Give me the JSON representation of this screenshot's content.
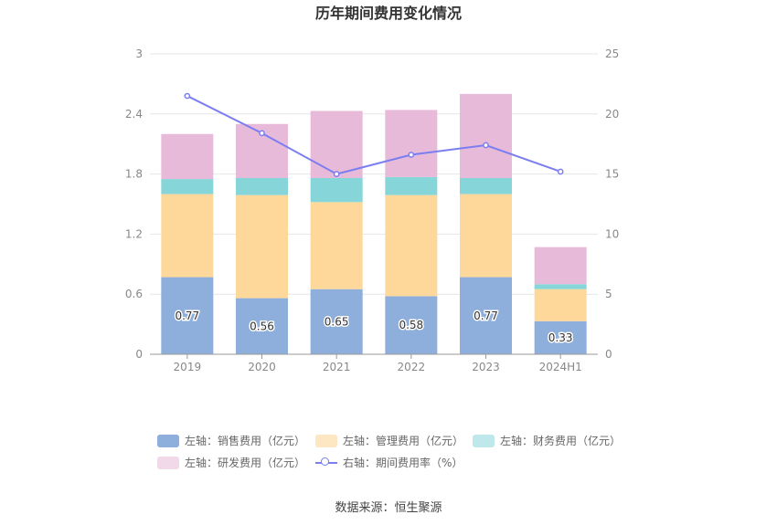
{
  "chart_data": {
    "type": "bar",
    "title": "历年期间费用变化情况",
    "categories": [
      "2019",
      "2020",
      "2021",
      "2022",
      "2023",
      "2024H1"
    ],
    "left_axis": {
      "ylim": [
        0,
        3
      ],
      "ticks": [
        "0",
        "0.6",
        "1.2",
        "1.8",
        "2.4",
        "3"
      ]
    },
    "right_axis": {
      "ylim": [
        0,
        25
      ],
      "ticks": [
        "0",
        "5",
        "10",
        "15",
        "20",
        "25"
      ]
    },
    "series": [
      {
        "name": "左轴：销售费用（亿元）",
        "type": "bar",
        "axis": "left",
        "color": "#8eaedc",
        "values": [
          0.77,
          0.56,
          0.65,
          0.58,
          0.77,
          0.33
        ],
        "labels": [
          "0.77",
          "0.56",
          "0.65",
          "0.58",
          "0.77",
          "0.33"
        ]
      },
      {
        "name": "左轴：管理费用（亿元）",
        "type": "bar",
        "axis": "left",
        "color": "#fed89b",
        "legend_color": "#fde6c2",
        "values": [
          0.83,
          1.03,
          0.87,
          1.01,
          0.83,
          0.32
        ]
      },
      {
        "name": "左轴：财务费用（亿元）",
        "type": "bar",
        "axis": "left",
        "color": "#86d6d9",
        "legend_color": "#bfe8ea",
        "values": [
          0.15,
          0.17,
          0.24,
          0.18,
          0.16,
          0.05
        ]
      },
      {
        "name": "左轴：研发费用（亿元）",
        "type": "bar",
        "axis": "left",
        "color": "#e8bada",
        "legend_color": "#f2d9ea",
        "values": [
          0.45,
          0.54,
          0.67,
          0.67,
          0.84,
          0.37
        ]
      },
      {
        "name": "右轴：期间费用率（%）",
        "type": "line",
        "axis": "right",
        "color": "#7b7ef0",
        "values": [
          21.5,
          18.4,
          15.0,
          16.6,
          17.4,
          15.2
        ]
      }
    ],
    "legend_position": "bottom",
    "grid": true
  },
  "source": "数据来源：恒生聚源"
}
